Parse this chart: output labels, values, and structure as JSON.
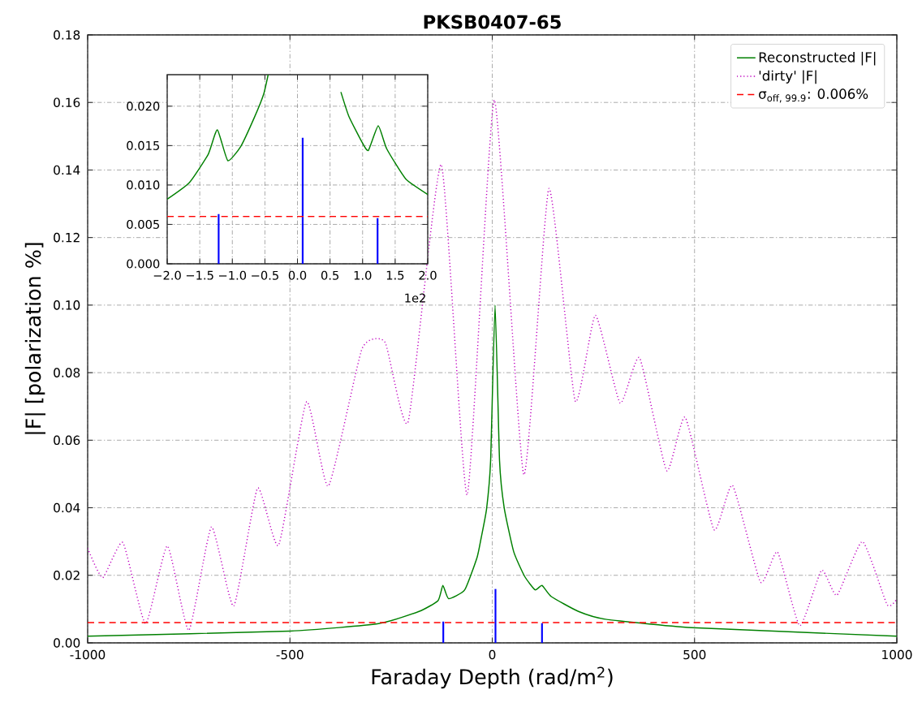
{
  "chart_data": [
    {
      "type": "line",
      "title": "PKSB0407-65",
      "xlabel": "Faraday Depth  (rad/m$^{2}$)",
      "ylabel": "|F| [polarization %]",
      "xlim": [
        -1000,
        1000
      ],
      "ylim": [
        0,
        0.18
      ],
      "xticks": [
        -1000,
        -500,
        0,
        500,
        1000
      ],
      "yticks": [
        {
          "value": 0,
          "label": "0.00"
        },
        {
          "value": 0.02,
          "label": "0.02"
        },
        {
          "value": 0.04,
          "label": "0.04"
        },
        {
          "value": 0.06,
          "label": "0.06"
        },
        {
          "value": 0.08,
          "label": "0.08"
        },
        {
          "value": 0.1,
          "label": "0.10"
        },
        {
          "value": 0.12,
          "label": "0.12"
        },
        {
          "value": 0.14,
          "label": "0.14"
        },
        {
          "value": 0.16,
          "label": "0.16"
        },
        {
          "value": 0.18,
          "label": "0.18"
        }
      ],
      "grid": true,
      "legend": "top right",
      "marker": "none",
      "series": [
        {
          "name": "Reconstructed |F|",
          "color": "#008000",
          "line_style": "solid",
          "x": [
            -1000,
            -500,
            -281,
            -181,
            -134,
            -122,
            -108,
            -68,
            -37.5,
            -27.5,
            -14,
            -4,
            7,
            18,
            29.5,
            53,
            80,
            106,
            123,
            146,
            213,
            280,
            494,
            1000
          ],
          "values": [
            0.002,
            0.0035,
            0.0057,
            0.0093,
            0.0125,
            0.017,
            0.0131,
            0.0157,
            0.0253,
            0.031,
            0.0397,
            0.054,
            0.1,
            0.054,
            0.04,
            0.027,
            0.0197,
            0.0157,
            0.017,
            0.0137,
            0.0093,
            0.007,
            0.0045,
            0.002
          ]
        },
        {
          "name": "'dirty' |F|",
          "color": "#bf00bf",
          "line_style": "dotted",
          "x": [
            -1000,
            -963,
            -913,
            -857,
            -803,
            -750,
            -694,
            -639,
            -580,
            -528,
            -459,
            -405,
            -322,
            -265,
            -208,
            -126,
            -62,
            5,
            78,
            140,
            205,
            255,
            316,
            364,
            431,
            477,
            548,
            594,
            663,
            705,
            760,
            814,
            852,
            915,
            976,
            1000
          ],
          "values": [
            0.028,
            0.0193,
            0.0297,
            0.0057,
            0.0287,
            0.0037,
            0.0343,
            0.0109,
            0.0458,
            0.0289,
            0.0714,
            0.0464,
            0.087,
            0.089,
            0.0654,
            0.1416,
            0.0438,
            0.1607,
            0.0498,
            0.1345,
            0.0716,
            0.097,
            0.071,
            0.0844,
            0.051,
            0.0668,
            0.0335,
            0.0466,
            0.018,
            0.0269,
            0.0051,
            0.0215,
            0.0141,
            0.03,
            0.0113,
            0.013
          ]
        },
        {
          "type": "bar",
          "color": "#0000ff",
          "x": [
            -121,
            8,
            123
          ],
          "values": [
            0.0063,
            0.016,
            0.0058
          ]
        }
      ],
      "ref_lines": [
        {
          "axis": "y",
          "value": 0.006,
          "label": "σ$_{off, 99.9}$: 0.006%",
          "color": "#ff0000",
          "line_style": "dashed"
        }
      ]
    },
    {
      "type": "line",
      "xlim": [
        -2,
        2
      ],
      "ylim": [
        0,
        0.024
      ],
      "xticks": [
        {
          "value": -2,
          "label": "−2.0"
        },
        {
          "value": -1.5,
          "label": "−1.5"
        },
        {
          "value": -1,
          "label": "−1.0"
        },
        {
          "value": -0.5,
          "label": "−0.5"
        },
        {
          "value": 0,
          "label": "0.0"
        },
        {
          "value": 0.5,
          "label": "0.5"
        },
        {
          "value": 1,
          "label": "1.0"
        },
        {
          "value": 1.5,
          "label": "1.5"
        },
        {
          "value": 2,
          "label": "2.0"
        }
      ],
      "yticks": [
        {
          "value": 0,
          "label": "0.000"
        },
        {
          "value": 0.005,
          "label": "0.005"
        },
        {
          "value": 0.01,
          "label": "0.010"
        },
        {
          "value": 0.015,
          "label": "0.015"
        },
        {
          "value": 0.02,
          "label": "0.020"
        }
      ],
      "grid": true,
      "marker": "none",
      "annotations": [
        "1e2"
      ],
      "series": [
        {
          "color": "#008000",
          "line_style": "solid",
          "x": [
            -2,
            -1.66,
            -1.37,
            -1.23,
            -1.07,
            -0.87,
            -0.66,
            -0.52,
            -0.45,
            0.58,
            0.667,
            0.79,
            1,
            1.09,
            1.24,
            1.37,
            1.66,
            2
          ],
          "values": [
            0.0082,
            0.0103,
            0.0139,
            0.017,
            0.0131,
            0.0149,
            0.0186,
            0.0215,
            0.024,
            null,
            0.0218,
            0.0187,
            0.0153,
            0.0144,
            0.0175,
            0.0146,
            0.0108,
            0.0088
          ]
        },
        {
          "type": "bar",
          "color": "#0000ff",
          "x": [
            -1.21,
            0.08,
            1.23
          ],
          "values": [
            0.0063,
            0.016,
            0.0058
          ]
        }
      ],
      "ref_lines": [
        {
          "axis": "y",
          "value": 0.006,
          "color": "#ff0000",
          "line_style": "dashed"
        }
      ]
    }
  ]
}
